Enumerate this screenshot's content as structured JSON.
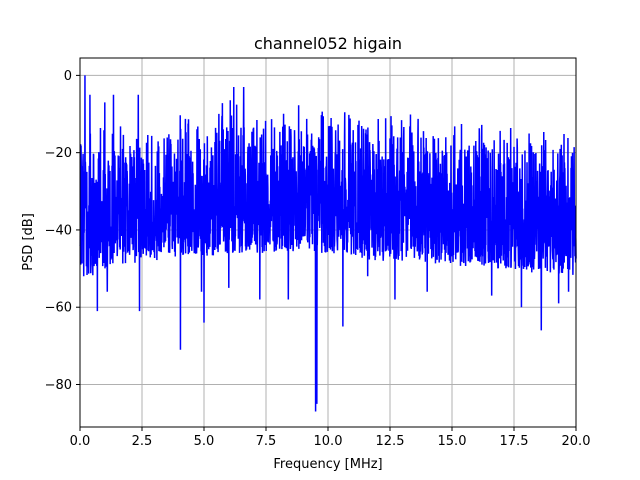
{
  "chart_data": {
    "type": "line",
    "title": "channel052 higain",
    "xlabel": "Frequency [MHz]",
    "ylabel": "PSD [dB]",
    "xlim": [
      0,
      20
    ],
    "ylim": [
      -91,
      4.5
    ],
    "xticks": [
      0,
      2.5,
      5,
      7.5,
      10,
      12.5,
      15,
      17.5,
      20
    ],
    "xtick_labels": [
      "0.0",
      "2.5",
      "5.0",
      "7.5",
      "10.0",
      "12.5",
      "15.0",
      "17.5",
      "20.0"
    ],
    "yticks": [
      0,
      -20,
      -40,
      -60,
      -80
    ],
    "ytick_labels": [
      "0",
      "−20",
      "−40",
      "−60",
      "−80"
    ],
    "grid": true,
    "series": [
      {
        "color": "#0000ff",
        "envelope": {
          "x": [
            0,
            0.15,
            0.5,
            1.0,
            1.5,
            2.0,
            2.5,
            3.0,
            4.0,
            5.0,
            6.0,
            7.0,
            8.0,
            9.0,
            10.0,
            11.0,
            12.0,
            13.0,
            14.0,
            15.0,
            16.0,
            17.0,
            18.0,
            19.0,
            20.0
          ],
          "upper": [
            -13,
            -9,
            -13,
            -11,
            -10,
            -11,
            -12,
            -10,
            -8,
            -7,
            -5,
            -6,
            -6,
            -7,
            -8,
            -8,
            -8,
            -9,
            -10,
            -10,
            -11,
            -12,
            -12,
            -13,
            -13
          ],
          "lower": [
            -50,
            -52,
            -52,
            -50,
            -49,
            -49,
            -48,
            -48,
            -47,
            -47,
            -46,
            -46,
            -46,
            -46,
            -46,
            -47,
            -48,
            -48,
            -49,
            -49,
            -50,
            -50,
            -51,
            -51,
            -52
          ]
        },
        "peaks": [
          {
            "x": 0.2,
            "y": 0
          },
          {
            "x": 0.4,
            "y": -5
          },
          {
            "x": 1.0,
            "y": -7
          },
          {
            "x": 1.35,
            "y": -5
          },
          {
            "x": 2.35,
            "y": -5
          },
          {
            "x": 6.2,
            "y": -3
          },
          {
            "x": 6.6,
            "y": -3
          }
        ],
        "dips": [
          {
            "x": 0.7,
            "y": -61
          },
          {
            "x": 1.1,
            "y": -56
          },
          {
            "x": 2.4,
            "y": -61
          },
          {
            "x": 4.05,
            "y": -71
          },
          {
            "x": 4.9,
            "y": -56
          },
          {
            "x": 5.0,
            "y": -64
          },
          {
            "x": 6.0,
            "y": -55
          },
          {
            "x": 7.25,
            "y": -58
          },
          {
            "x": 8.4,
            "y": -58
          },
          {
            "x": 9.5,
            "y": -87
          },
          {
            "x": 9.55,
            "y": -85
          },
          {
            "x": 10.6,
            "y": -65
          },
          {
            "x": 11.6,
            "y": -52
          },
          {
            "x": 12.7,
            "y": -58
          },
          {
            "x": 14.0,
            "y": -56
          },
          {
            "x": 16.6,
            "y": -57
          },
          {
            "x": 17.8,
            "y": -60
          },
          {
            "x": 18.6,
            "y": -66
          },
          {
            "x": 19.3,
            "y": -59
          },
          {
            "x": 19.7,
            "y": -56
          }
        ]
      }
    ]
  }
}
